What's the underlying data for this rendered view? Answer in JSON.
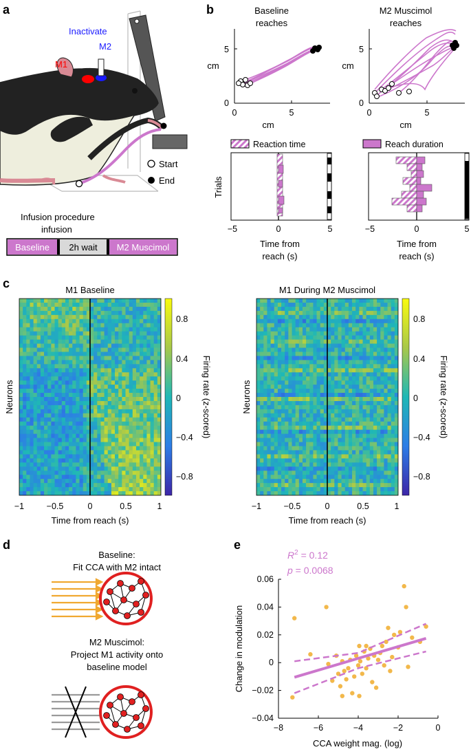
{
  "panels": {
    "a": {
      "letter": "a",
      "inactivate_label": "Inactivate",
      "m2_label": "M2",
      "m1_label": "M1",
      "legend_start": "Start",
      "legend_end": "End",
      "procedure_title": "Infusion procedure",
      "infusion_label": "infusion",
      "timeline": [
        "Baseline",
        "2h wait",
        "M2 Muscimol"
      ],
      "colors": {
        "m1": "#ff0000",
        "m2": "#1a1aff",
        "reach": "#cc77cc",
        "wait": "#d9d9d9"
      }
    },
    "b": {
      "letter": "b",
      "baseline_title_1": "Baseline",
      "baseline_title_2": "reaches",
      "muscimol_title_1": "M2 Muscimol",
      "muscimol_title_2": "reaches",
      "traj_ylabel": "cm",
      "traj_xlabel": "cm",
      "traj_xticks": [
        "0",
        "5"
      ],
      "traj_yticks": [
        "0",
        "5"
      ],
      "legend_reaction": "Reaction time",
      "legend_duration": "Reach duration",
      "trials_label": "Trials",
      "raster_xticks": [
        "−5",
        "0",
        "5"
      ],
      "raster_xlabel_1": "Time from",
      "raster_xlabel_2": "reach (s)"
    },
    "c": {
      "letter": "c",
      "left_title": "M1 Baseline",
      "right_title": "M1 During M2 Muscimol",
      "ylabel": "Neurons",
      "xlabel": "Time from reach (s)",
      "xticks": [
        "−1",
        "−0.5",
        "0",
        "0.5",
        "1"
      ],
      "colorbar_ticks": [
        "0.8",
        "0.4",
        "0",
        "−0.4",
        "−0.8"
      ],
      "colorbar_label": "Firing rate (z-scored)"
    },
    "d": {
      "letter": "d",
      "baseline_line1": "Baseline:",
      "baseline_line2": "Fit CCA with M2 intact",
      "muscimol_line1": "M2 Muscimol:",
      "muscimol_line2": "Project M1 activity onto",
      "muscimol_line3": "baseline model"
    },
    "e": {
      "letter": "e",
      "r2_label": "R",
      "r2_sup": "2",
      "r2_value": " = 0.12",
      "p_label": "p",
      "p_value": " = 0.0068",
      "ylabel": "Change in modulation",
      "xlabel": "CCA weight mag. (log)",
      "xticks": [
        "−8",
        "−6",
        "−4",
        "−2",
        "0"
      ],
      "yticks": [
        "0.06",
        "0.04",
        "0.02",
        "0",
        "−0.02",
        "−0.04"
      ]
    }
  },
  "chart_data": [
    {
      "type": "scatter",
      "panel": "e",
      "xlabel": "CCA weight mag. (log)",
      "ylabel": "Change in modulation",
      "xlim": [
        -8,
        0
      ],
      "ylim": [
        -0.04,
        0.06
      ],
      "points": [
        [
          -7.2,
          0.032
        ],
        [
          -7.3,
          -0.025
        ],
        [
          -6.4,
          0.006
        ],
        [
          -5.6,
          0.04
        ],
        [
          -5.5,
          -0.001
        ],
        [
          -5.3,
          -0.013
        ],
        [
          -5.1,
          0.005
        ],
        [
          -5.0,
          -0.008
        ],
        [
          -4.9,
          -0.017
        ],
        [
          -4.8,
          0.001
        ],
        [
          -4.7,
          -0.006
        ],
        [
          -4.6,
          -0.012
        ],
        [
          -4.5,
          -0.004
        ],
        [
          -4.4,
          0.002
        ],
        [
          -4.3,
          -0.022
        ],
        [
          -4.2,
          -0.01
        ],
        [
          -4.1,
          0.005
        ],
        [
          -4.0,
          -0.002
        ],
        [
          -3.95,
          0.012
        ],
        [
          -3.9,
          0.001
        ],
        [
          -3.8,
          -0.008
        ],
        [
          -3.7,
          0.008
        ],
        [
          -3.6,
          -0.004
        ],
        [
          -3.5,
          0.003
        ],
        [
          -3.4,
          0.01
        ],
        [
          -3.3,
          -0.014
        ],
        [
          -3.2,
          0.005
        ],
        [
          -3.1,
          -0.018
        ],
        [
          -3.0,
          0.002
        ],
        [
          -2.9,
          0.007
        ],
        [
          -2.8,
          0.012
        ],
        [
          -2.7,
          -0.002
        ],
        [
          -2.6,
          0.015
        ],
        [
          -2.5,
          0.025
        ],
        [
          -2.4,
          -0.006
        ],
        [
          -2.3,
          0.004
        ],
        [
          -2.2,
          0.02
        ],
        [
          -2.0,
          0.011
        ],
        [
          -1.9,
          0.022
        ],
        [
          -1.7,
          0.055
        ],
        [
          -1.6,
          0.04
        ],
        [
          -1.5,
          -0.003
        ],
        [
          -1.3,
          0.018
        ],
        [
          -0.9,
          0.015
        ],
        [
          -0.6,
          0.026
        ],
        [
          -4.8,
          -0.024
        ],
        [
          -3.95,
          -0.024
        ],
        [
          -3.6,
          0.012
        ]
      ],
      "fit": {
        "x": [
          -7.2,
          -0.6
        ],
        "y": [
          -0.0105,
          0.0175
        ]
      },
      "ci_upper": {
        "x": [
          -7.2,
          -4.0,
          -0.6
        ],
        "y": [
          0.001,
          0.007,
          0.028
        ]
      },
      "ci_lower": {
        "x": [
          -7.2,
          -4.0,
          -0.6
        ],
        "y": [
          -0.022,
          -0.004,
          0.008
        ]
      },
      "r2": 0.12,
      "p": 0.0068
    }
  ]
}
